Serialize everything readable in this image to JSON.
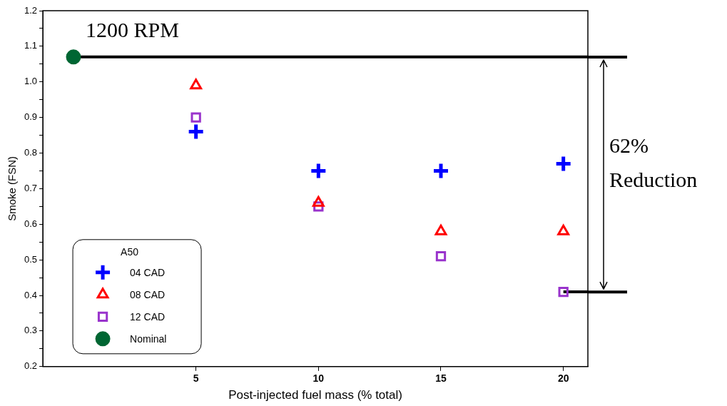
{
  "chart_data": {
    "type": "scatter",
    "xlabel": "Post-injected fuel mass (% total)",
    "ylabel": "Smoke (FSN)",
    "legend_title": "A50",
    "legend": "bottom left",
    "grid": false,
    "xlim": [
      -1.25,
      21
    ],
    "xticks": [
      5,
      10,
      15,
      20
    ],
    "ylim": [
      0.2,
      1.2
    ],
    "yticks": [
      0.2,
      {
        "value": 0.25,
        "label": null
      },
      0.3,
      {
        "value": 0.35,
        "label": null
      },
      0.4,
      {
        "value": 0.45,
        "label": null
      },
      0.5,
      {
        "value": 0.55,
        "label": null
      },
      0.6,
      {
        "value": 0.65,
        "label": null
      },
      0.7,
      {
        "value": 0.75,
        "label": null
      },
      0.8,
      {
        "value": 0.85,
        "label": null
      },
      0.9,
      {
        "value": 0.95,
        "label": null
      },
      {
        "value": 1,
        "label": "1.0"
      },
      {
        "value": 1.05,
        "label": null
      },
      1.1,
      {
        "value": 1.15,
        "label": null
      },
      1.2
    ],
    "series": [
      {
        "name": "04 CAD",
        "color": "#0000ff",
        "marker": "cross",
        "x": [
          5,
          10,
          15,
          20
        ],
        "values": [
          0.86,
          0.75,
          0.75,
          0.77
        ]
      },
      {
        "name": "08 CAD",
        "color": "#ff0000",
        "marker": "triangle",
        "x": [
          5,
          10,
          15,
          20
        ],
        "values": [
          0.99,
          0.66,
          0.58,
          0.58
        ]
      },
      {
        "name": "12 CAD",
        "color": "#9933cc",
        "marker": "square",
        "x": [
          5,
          10,
          15,
          20
        ],
        "values": [
          0.9,
          0.65,
          0.51,
          0.41
        ]
      },
      {
        "name": "Nominal",
        "color": "#006633",
        "marker": "circle",
        "x": [
          0
        ],
        "values": [
          1.07
        ]
      },
      {
        "type": "line",
        "color": "#000000",
        "marker": "none",
        "x": [
          0,
          21
        ],
        "values": [
          1.07,
          1.07
        ]
      },
      {
        "type": "line",
        "color": "#000000",
        "marker": "none",
        "x": [
          20,
          21
        ],
        "values": [
          0.41,
          0.41
        ]
      }
    ],
    "annotations": [
      "1200 RPM",
      "62% Reduction"
    ]
  }
}
